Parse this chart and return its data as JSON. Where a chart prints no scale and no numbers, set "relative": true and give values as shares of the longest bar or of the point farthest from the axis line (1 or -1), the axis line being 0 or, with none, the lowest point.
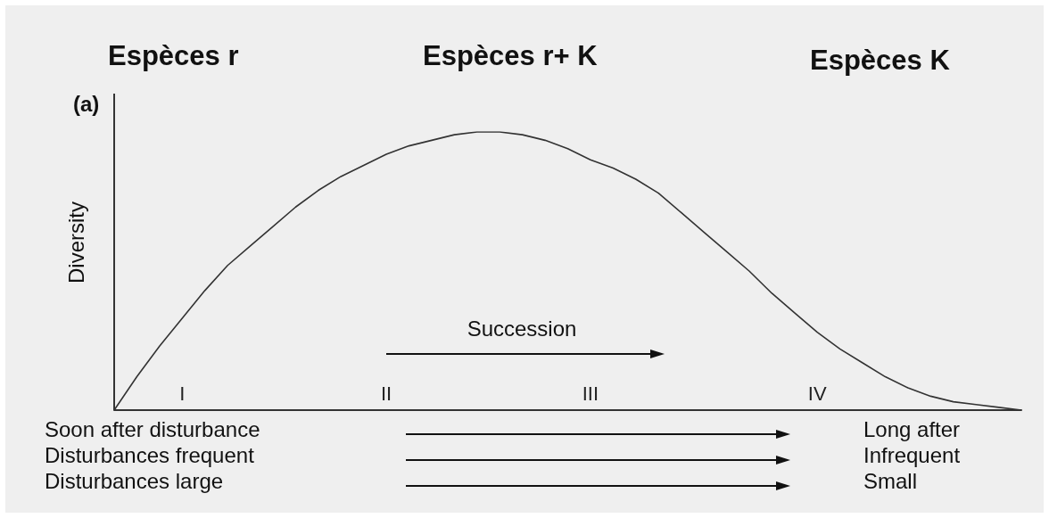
{
  "chart_data": {
    "type": "line",
    "relative": true,
    "ylabel": "Diversity",
    "color": "#333333",
    "marker": "none",
    "line_style": "solid",
    "categories": [
      null,
      null,
      null,
      "I",
      null,
      null,
      null,
      null,
      null,
      null,
      null,
      null,
      "II",
      null,
      null,
      null,
      null,
      null,
      null,
      null,
      null,
      "III",
      null,
      null,
      null,
      null,
      null,
      null,
      null,
      null,
      null,
      "IV",
      null,
      null,
      null,
      null,
      null,
      null,
      null,
      null,
      null
    ],
    "values": [
      0,
      0.12,
      0.23,
      0.33,
      0.43,
      0.52,
      0.59,
      0.66,
      0.73,
      0.79,
      0.84,
      0.88,
      0.92,
      0.95,
      0.97,
      0.99,
      1,
      1,
      0.99,
      0.97,
      0.94,
      0.9,
      0.87,
      0.83,
      0.78,
      0.71,
      0.64,
      0.57,
      0.5,
      0.42,
      0.35,
      0.28,
      0.22,
      0.17,
      0.12,
      0.08,
      0.05,
      0.03,
      0.02,
      0.01,
      0
    ],
    "annotations": [
      "Espèces r",
      "Espèces r+ K",
      "Espèces K",
      "(a)",
      "Succession",
      "Soon after disturbance",
      "Disturbances frequent",
      "Disturbances large",
      "Long after",
      "Infrequent",
      "Small"
    ]
  }
}
